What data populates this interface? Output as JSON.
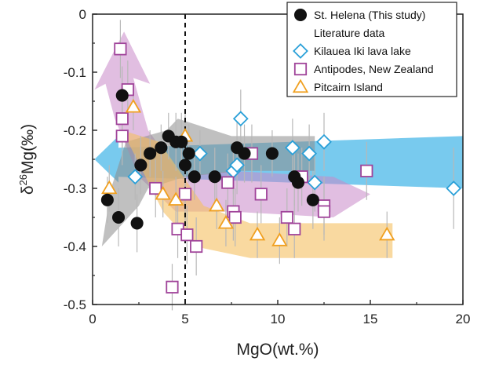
{
  "chart_data": {
    "type": "scatter",
    "title": "",
    "xlabel_base": "MgO(wt.%)",
    "ylabel_prefix": "δ",
    "ylabel_sup": "26",
    "ylabel_suffix": "Mg(‰)",
    "xlim": [
      0,
      20
    ],
    "ylim": [
      -0.5,
      0
    ],
    "x_ticks": [
      0,
      5,
      10,
      15,
      20
    ],
    "x_tick_labels": [
      "0",
      "5",
      "10",
      "15",
      "20"
    ],
    "y_ticks": [
      0,
      -0.1,
      -0.2,
      -0.3,
      -0.4,
      -0.5
    ],
    "y_tick_labels": [
      "0",
      "-0.1",
      "-0.2",
      "-0.3",
      "-0.4",
      "-0.5"
    ],
    "reference_line_x": 5,
    "legend": {
      "position": "top-right",
      "header": "Literature data"
    },
    "series": [
      {
        "name": "St. Helena (This study)",
        "marker": "circle",
        "color": "#111111",
        "fill": "#111111",
        "points": [
          {
            "x": 0.8,
            "y": -0.32,
            "err": 0.04
          },
          {
            "x": 1.4,
            "y": -0.35,
            "err": 0.05
          },
          {
            "x": 1.6,
            "y": -0.14,
            "err": 0.05
          },
          {
            "x": 2.4,
            "y": -0.36,
            "err": 0.05
          },
          {
            "x": 2.6,
            "y": -0.26,
            "err": 0.05
          },
          {
            "x": 3.1,
            "y": -0.24,
            "err": 0.04
          },
          {
            "x": 3.7,
            "y": -0.23,
            "err": 0.04
          },
          {
            "x": 4.1,
            "y": -0.21,
            "err": 0.04
          },
          {
            "x": 4.5,
            "y": -0.22,
            "err": 0.05
          },
          {
            "x": 4.8,
            "y": -0.22,
            "err": 0.05
          },
          {
            "x": 5.0,
            "y": -0.26,
            "err": 0.05
          },
          {
            "x": 5.2,
            "y": -0.24,
            "err": 0.05
          },
          {
            "x": 5.5,
            "y": -0.28,
            "err": 0.04
          },
          {
            "x": 6.6,
            "y": -0.28,
            "err": 0.05
          },
          {
            "x": 7.8,
            "y": -0.23,
            "err": 0.05
          },
          {
            "x": 8.2,
            "y": -0.24,
            "err": 0.05
          },
          {
            "x": 9.7,
            "y": -0.24,
            "err": 0.04
          },
          {
            "x": 10.9,
            "y": -0.28,
            "err": 0.05
          },
          {
            "x": 11.1,
            "y": -0.29,
            "err": 0.05
          },
          {
            "x": 11.9,
            "y": -0.32,
            "err": 0.05
          }
        ]
      },
      {
        "name": "Kilauea Iki lava lake",
        "marker": "diamond",
        "color": "#2aa0d8",
        "fill": "#ffffff",
        "points": [
          {
            "x": 2.3,
            "y": -0.28,
            "err": 0.04
          },
          {
            "x": 5.8,
            "y": -0.24,
            "err": 0.04
          },
          {
            "x": 7.6,
            "y": -0.27,
            "err": 0.04
          },
          {
            "x": 7.8,
            "y": -0.26,
            "err": 0.05
          },
          {
            "x": 8.0,
            "y": -0.18,
            "err": 0.05
          },
          {
            "x": 10.8,
            "y": -0.23,
            "err": 0.05
          },
          {
            "x": 11.7,
            "y": -0.24,
            "err": 0.05
          },
          {
            "x": 12.0,
            "y": -0.29,
            "err": 0.05
          },
          {
            "x": 12.5,
            "y": -0.22,
            "err": 0.05
          },
          {
            "x": 19.5,
            "y": -0.3,
            "err": 0.07
          }
        ]
      },
      {
        "name": "Antipodes, New Zealand",
        "marker": "square",
        "color": "#a0449a",
        "fill": "#ffffff",
        "points": [
          {
            "x": 1.5,
            "y": -0.06,
            "err": 0.05
          },
          {
            "x": 1.6,
            "y": -0.18,
            "err": 0.05
          },
          {
            "x": 1.6,
            "y": -0.21,
            "err": 0.05
          },
          {
            "x": 1.9,
            "y": -0.13,
            "err": 0.05
          },
          {
            "x": 3.4,
            "y": -0.3,
            "err": 0.05
          },
          {
            "x": 4.3,
            "y": -0.47,
            "err": 0.04
          },
          {
            "x": 4.6,
            "y": -0.37,
            "err": 0.05
          },
          {
            "x": 5.0,
            "y": -0.31,
            "err": 0.05
          },
          {
            "x": 5.1,
            "y": -0.38,
            "err": 0.05
          },
          {
            "x": 5.6,
            "y": -0.4,
            "err": 0.05
          },
          {
            "x": 7.3,
            "y": -0.29,
            "err": 0.05
          },
          {
            "x": 7.6,
            "y": -0.34,
            "err": 0.05
          },
          {
            "x": 7.7,
            "y": -0.35,
            "err": 0.05
          },
          {
            "x": 8.6,
            "y": -0.24,
            "err": 0.05
          },
          {
            "x": 9.1,
            "y": -0.31,
            "err": 0.05
          },
          {
            "x": 10.5,
            "y": -0.35,
            "err": 0.05
          },
          {
            "x": 10.9,
            "y": -0.37,
            "err": 0.05
          },
          {
            "x": 11.3,
            "y": -0.28,
            "err": 0.05
          },
          {
            "x": 12.5,
            "y": -0.33,
            "err": 0.05
          },
          {
            "x": 12.5,
            "y": -0.34,
            "err": 0.05
          },
          {
            "x": 14.8,
            "y": -0.27,
            "err": 0.05
          }
        ]
      },
      {
        "name": "Pitcairn Island",
        "marker": "triangle",
        "color": "#f0a020",
        "fill": "#ffffff",
        "points": [
          {
            "x": 0.9,
            "y": -0.3,
            "err": 0.04
          },
          {
            "x": 2.2,
            "y": -0.16,
            "err": 0.04
          },
          {
            "x": 3.8,
            "y": -0.31,
            "err": 0.04
          },
          {
            "x": 4.5,
            "y": -0.32,
            "err": 0.04
          },
          {
            "x": 5.0,
            "y": -0.21,
            "err": 0.04
          },
          {
            "x": 6.7,
            "y": -0.33,
            "err": 0.04
          },
          {
            "x": 7.2,
            "y": -0.36,
            "err": 0.04
          },
          {
            "x": 8.9,
            "y": -0.38,
            "err": 0.04
          },
          {
            "x": 10.1,
            "y": -0.39,
            "err": 0.04
          },
          {
            "x": 15.9,
            "y": -0.38,
            "err": 0.04
          }
        ]
      }
    ],
    "trend_bands": [
      {
        "name": "Kilauea trend",
        "color": "#4bb8e8",
        "opacity": 0.75,
        "polygon": [
          [
            0.1,
            -0.25
          ],
          [
            1.4,
            -0.21
          ],
          [
            1.4,
            -0.23
          ],
          [
            20,
            -0.21
          ],
          [
            20,
            -0.3
          ],
          [
            1.4,
            -0.28
          ],
          [
            1.4,
            -0.29
          ]
        ]
      },
      {
        "name": "Antipodes trend",
        "color": "#c888c8",
        "opacity": 0.55,
        "polygon": [
          [
            0.1,
            -0.13
          ],
          [
            1.7,
            -0.03
          ],
          [
            3.1,
            -0.12
          ],
          [
            2.2,
            -0.11
          ],
          [
            3.0,
            -0.2
          ],
          [
            4.8,
            -0.28
          ],
          [
            7.5,
            -0.27
          ],
          [
            13.0,
            -0.28
          ],
          [
            15.0,
            -0.31
          ],
          [
            13.0,
            -0.35
          ],
          [
            7.5,
            -0.34
          ],
          [
            4.5,
            -0.34
          ],
          [
            2.5,
            -0.28
          ],
          [
            1.2,
            -0.18
          ],
          [
            0.7,
            -0.12
          ]
        ]
      },
      {
        "name": "St. Helena trend",
        "color": "#8c8c8c",
        "opacity": 0.55,
        "polygon": [
          [
            0.5,
            -0.4
          ],
          [
            1.0,
            -0.3
          ],
          [
            1.8,
            -0.22
          ],
          [
            4.0,
            -0.2
          ],
          [
            4.6,
            -0.18
          ],
          [
            7.5,
            -0.21
          ],
          [
            12.0,
            -0.21
          ],
          [
            12.0,
            -0.27
          ],
          [
            8.0,
            -0.27
          ],
          [
            5.0,
            -0.28
          ],
          [
            3.0,
            -0.3
          ],
          [
            2.5,
            -0.33
          ]
        ]
      },
      {
        "name": "Pitcairn trend",
        "color": "#f5c060",
        "opacity": 0.6,
        "polygon": [
          [
            1.6,
            -0.2
          ],
          [
            3.6,
            -0.22
          ],
          [
            6.0,
            -0.33
          ],
          [
            8.5,
            -0.36
          ],
          [
            16.2,
            -0.36
          ],
          [
            16.2,
            -0.42
          ],
          [
            8.5,
            -0.42
          ],
          [
            5.5,
            -0.4
          ],
          [
            3.8,
            -0.34
          ]
        ]
      }
    ]
  }
}
